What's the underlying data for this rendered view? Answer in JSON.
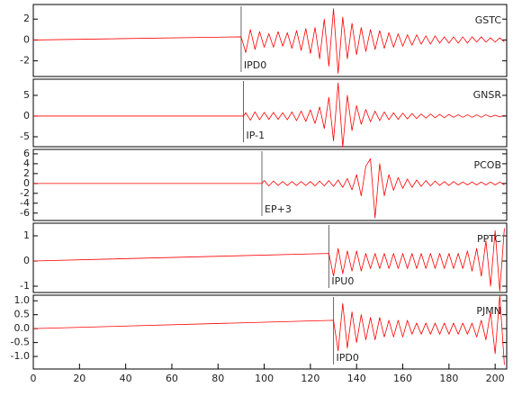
{
  "chart_data": [
    {
      "type": "line",
      "xlim": [
        0,
        205
      ],
      "ylim": [
        -3.5,
        3.4
      ],
      "yticks": [
        2,
        0,
        -2
      ],
      "x": [
        0,
        90,
        92,
        94,
        96,
        98,
        100,
        102,
        104,
        106,
        108,
        110,
        112,
        114,
        116,
        118,
        120,
        122,
        124,
        126,
        128,
        130,
        132,
        134,
        136,
        138,
        140,
        142,
        144,
        146,
        148,
        150,
        152,
        154,
        156,
        158,
        160,
        162,
        164,
        166,
        168,
        170,
        172,
        174,
        176,
        178,
        180,
        182,
        184,
        186,
        188,
        190,
        192,
        194,
        196,
        198,
        200,
        202,
        204
      ],
      "series": [
        {
          "name": "GSTC",
          "color": "#ff0000",
          "values": [
            0,
            0.3,
            -1.2,
            1.0,
            -0.9,
            0.8,
            -0.7,
            0.6,
            -0.7,
            0.8,
            -0.6,
            0.7,
            -0.8,
            0.9,
            -1.0,
            1.1,
            -1.3,
            1.2,
            -1.8,
            2.0,
            -2.5,
            3.0,
            -3.2,
            2.2,
            -1.8,
            1.6,
            -1.4,
            1.2,
            -1.1,
            1.0,
            -0.9,
            0.9,
            -0.8,
            0.7,
            -0.7,
            0.6,
            -0.6,
            0.5,
            -0.5,
            0.5,
            -0.4,
            0.4,
            -0.4,
            0.4,
            -0.3,
            0.3,
            -0.3,
            0.3,
            -0.3,
            0.3,
            -0.3,
            0.3,
            -0.2,
            0.3,
            -0.2,
            0.2,
            -0.2,
            0.2,
            -0.2
          ]
        }
      ],
      "pick": {
        "x": 90,
        "label": "IPD0"
      }
    },
    {
      "type": "line",
      "xlim": [
        0,
        205
      ],
      "ylim": [
        -7.4,
        8.9
      ],
      "yticks": [
        5,
        0,
        -5
      ],
      "x": [
        0,
        91,
        92,
        94,
        96,
        98,
        100,
        102,
        104,
        106,
        108,
        110,
        112,
        114,
        116,
        118,
        120,
        122,
        124,
        126,
        128,
        130,
        132,
        134,
        136,
        138,
        140,
        142,
        144,
        146,
        148,
        150,
        152,
        154,
        156,
        158,
        160,
        162,
        164,
        166,
        168,
        170,
        172,
        174,
        176,
        178,
        180,
        182,
        184,
        186,
        188,
        190,
        192,
        194,
        196,
        198,
        200,
        202,
        204
      ],
      "series": [
        {
          "name": "GNSR",
          "color": "#ff0000",
          "values": [
            0,
            0,
            0.8,
            -1,
            1,
            -0.9,
            0.9,
            -0.8,
            0.9,
            -0.8,
            0.8,
            -0.9,
            1,
            -1.1,
            1.2,
            -1.3,
            1.5,
            -1.8,
            2.2,
            -3,
            4.5,
            -6,
            8,
            -7.5,
            5,
            -3.5,
            2.5,
            -2,
            1.6,
            -1.4,
            1.2,
            -1.1,
            1,
            -0.9,
            0.8,
            -0.8,
            0.7,
            -0.7,
            0.6,
            -0.6,
            0.5,
            -0.5,
            0.5,
            -0.4,
            0.4,
            -0.4,
            0.4,
            -0.3,
            0.3,
            -0.3,
            0.3,
            -0.3,
            0.3,
            -0.3,
            0.3,
            -0.2,
            0.2,
            -0.2,
            0.2
          ]
        }
      ],
      "pick": {
        "x": 91,
        "label": "IP-1"
      }
    },
    {
      "type": "line",
      "xlim": [
        0,
        205
      ],
      "ylim": [
        -7.5,
        6.9
      ],
      "yticks": [
        6,
        4,
        2,
        0,
        -2,
        -4,
        -6
      ],
      "x": [
        0,
        99,
        100,
        102,
        104,
        106,
        108,
        110,
        112,
        114,
        116,
        118,
        120,
        122,
        124,
        126,
        128,
        130,
        132,
        134,
        136,
        138,
        140,
        142,
        144,
        146,
        148,
        150,
        152,
        154,
        156,
        158,
        160,
        162,
        164,
        166,
        168,
        170,
        172,
        174,
        176,
        178,
        180,
        182,
        184,
        186,
        188,
        190,
        192,
        194,
        196,
        198,
        200,
        202,
        204
      ],
      "series": [
        {
          "name": "PCOB",
          "color": "#ff0000",
          "values": [
            0,
            0,
            0.6,
            -0.5,
            0.5,
            -0.4,
            0.4,
            -0.4,
            0.4,
            -0.4,
            0.4,
            -0.4,
            0.4,
            -0.5,
            0.5,
            -0.5,
            0.6,
            -0.6,
            0.7,
            -0.8,
            1,
            -1.3,
            1.8,
            -2.5,
            3.5,
            5,
            -7,
            4,
            -2.5,
            1.8,
            -1.4,
            1.2,
            -1,
            0.9,
            -0.8,
            0.7,
            -0.6,
            0.6,
            -0.5,
            0.5,
            -0.4,
            0.4,
            -0.4,
            0.4,
            -0.3,
            0.3,
            -0.3,
            0.3,
            -0.3,
            0.3,
            -0.3,
            0.3,
            -0.3,
            0.3,
            -0.3
          ]
        }
      ],
      "pick": {
        "x": 99,
        "label": "EP+3"
      }
    },
    {
      "type": "line",
      "xlim": [
        0,
        205
      ],
      "ylim": [
        -1.25,
        1.5
      ],
      "yticks": [
        1,
        0,
        -1
      ],
      "x": [
        0,
        128,
        130,
        132,
        134,
        136,
        138,
        140,
        142,
        144,
        146,
        148,
        150,
        152,
        154,
        156,
        158,
        160,
        162,
        164,
        166,
        168,
        170,
        172,
        174,
        176,
        178,
        180,
        182,
        184,
        186,
        188,
        190,
        192,
        194,
        196,
        198,
        200,
        202,
        204
      ],
      "series": [
        {
          "name": "PPTC",
          "color": "#ff0000",
          "values": [
            0,
            0.3,
            -0.6,
            0.5,
            -0.5,
            0.4,
            -0.4,
            0.4,
            -0.4,
            0.3,
            -0.3,
            0.3,
            -0.3,
            0.3,
            -0.3,
            0.3,
            -0.3,
            0.3,
            -0.3,
            0.3,
            -0.3,
            0.3,
            -0.3,
            0.3,
            -0.3,
            0.3,
            -0.3,
            0.3,
            -0.3,
            0.3,
            -0.3,
            0.4,
            -0.4,
            0.5,
            -0.6,
            0.8,
            -1,
            1.2,
            -1.2,
            1.3
          ]
        }
      ],
      "pick": {
        "x": 128,
        "label": "IPU0"
      }
    },
    {
      "type": "line",
      "xlim": [
        0,
        205
      ],
      "ylim": [
        -1.45,
        1.2
      ],
      "yticks": [
        {
          "value": 1,
          "label": "1.0"
        },
        0.5,
        {
          "value": 0,
          "label": "0.0"
        },
        -0.5,
        {
          "value": -1,
          "label": "-1.0"
        }
      ],
      "xticks": [
        0,
        20,
        40,
        60,
        80,
        100,
        120,
        140,
        160,
        180,
        200
      ],
      "x": [
        0,
        130,
        132,
        134,
        136,
        138,
        140,
        142,
        144,
        146,
        148,
        150,
        152,
        154,
        156,
        158,
        160,
        162,
        164,
        166,
        168,
        170,
        172,
        174,
        176,
        178,
        180,
        182,
        184,
        186,
        188,
        190,
        192,
        194,
        196,
        198,
        200,
        202,
        204
      ],
      "series": [
        {
          "name": "PJMN",
          "color": "#ff0000",
          "values": [
            0,
            0.3,
            -0.8,
            0.9,
            -0.7,
            0.6,
            -0.5,
            0.5,
            -0.4,
            0.4,
            -0.4,
            0.4,
            -0.3,
            0.3,
            -0.3,
            0.3,
            -0.3,
            0.3,
            -0.2,
            0.2,
            -0.2,
            0.2,
            -0.2,
            0.2,
            -0.2,
            0.2,
            -0.2,
            0.2,
            -0.2,
            0.2,
            -0.2,
            0.2,
            -0.3,
            0.3,
            -0.4,
            0.6,
            -0.9,
            1.2,
            -1.3
          ]
        }
      ],
      "pick": {
        "x": 130,
        "label": "IPD0"
      }
    }
  ]
}
